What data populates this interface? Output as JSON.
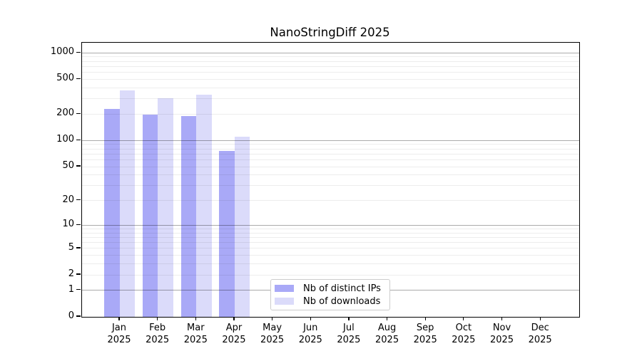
{
  "title": "NanoStringDiff 2025",
  "chart_data": {
    "type": "bar",
    "title": "NanoStringDiff 2025",
    "categories": [
      "Jan",
      "Feb",
      "Mar",
      "Apr",
      "May",
      "Jun",
      "Jul",
      "Aug",
      "Sep",
      "Oct",
      "Nov",
      "Dec"
    ],
    "year": "2025",
    "series": [
      {
        "name": "Nb of distinct IPs",
        "color": "#a9a9f7",
        "values": [
          230,
          198,
          192,
          76,
          0,
          0,
          0,
          0,
          0,
          0,
          0,
          0
        ]
      },
      {
        "name": "Nb of downloads",
        "color": "#dbdbfa",
        "values": [
          376,
          304,
          336,
          111,
          0,
          0,
          0,
          0,
          0,
          0,
          0,
          0
        ]
      }
    ],
    "y_axis": {
      "scale": "log10(value+1)",
      "tick_values": [
        0,
        1,
        2,
        5,
        10,
        20,
        50,
        100,
        200,
        500,
        1000
      ],
      "major_grid_values": [
        1,
        10,
        100,
        1000
      ],
      "range": [
        0,
        1300
      ]
    },
    "x_axis": {
      "label_line2": "2025"
    },
    "grid": "horizontal, major dark + minor light, drawn over bars",
    "legend_position": "bottom-center",
    "colors": {
      "bar_distinct_ips": "#a9a9f7",
      "bar_downloads": "#dbdbfa",
      "major_gridline": "#ababab",
      "minor_gridline": "#ededed",
      "axis": "#000000",
      "legend_border": "#cccccc",
      "background": "#ffffff"
    }
  },
  "legend": {
    "items": [
      {
        "label": "Nb of distinct IPs",
        "color": "#a9a9f7"
      },
      {
        "label": "Nb of downloads",
        "color": "#dbdbfa"
      }
    ]
  }
}
